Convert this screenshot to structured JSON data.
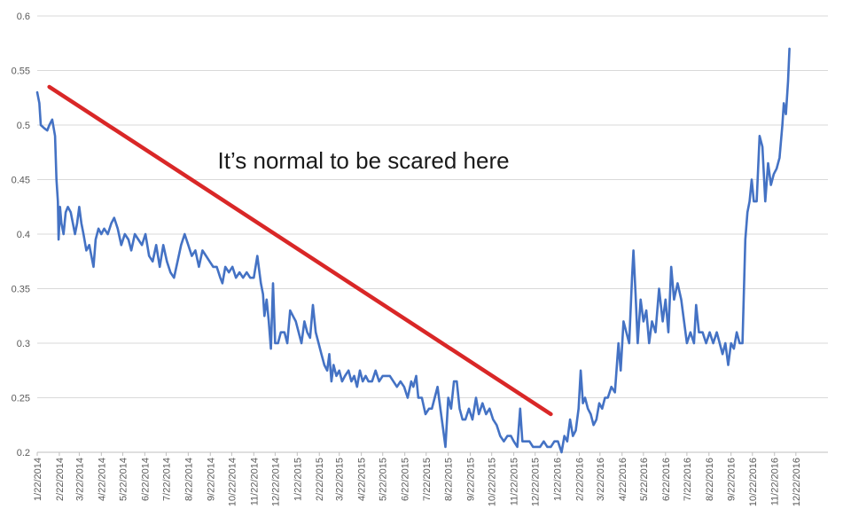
{
  "chart_data": {
    "type": "line",
    "title": "",
    "xlabel": "",
    "ylabel": "",
    "ylim": [
      0.2,
      0.6
    ],
    "yticks": [
      0.2,
      0.25,
      0.3,
      0.35,
      0.4,
      0.45,
      0.5,
      0.55,
      0.6
    ],
    "ytick_labels": [
      "0.2",
      "0.25",
      "0.3",
      "0.35",
      "0.4",
      "0.45",
      "0.5",
      "0.55",
      "0.6"
    ],
    "xlim": [
      "2014-01-22",
      "2017-02-05"
    ],
    "xticks": [
      "2014-01-22",
      "2014-02-22",
      "2014-03-22",
      "2014-04-22",
      "2014-05-22",
      "2014-06-22",
      "2014-07-22",
      "2014-08-22",
      "2014-09-22",
      "2014-10-22",
      "2014-11-22",
      "2014-12-22",
      "2015-01-22",
      "2015-02-22",
      "2015-03-22",
      "2015-04-22",
      "2015-05-22",
      "2015-06-22",
      "2015-07-22",
      "2015-08-22",
      "2015-09-22",
      "2015-10-22",
      "2015-11-22",
      "2015-12-22",
      "2016-01-22",
      "2016-02-22",
      "2016-03-22",
      "2016-04-22",
      "2016-05-22",
      "2016-06-22",
      "2016-07-22",
      "2016-08-22",
      "2016-09-22",
      "2016-10-22",
      "2016-11-22",
      "2016-12-22"
    ],
    "xtick_labels": [
      "1/22/2014",
      "2/22/2014",
      "3/22/2014",
      "4/22/2014",
      "5/22/2014",
      "6/22/2014",
      "7/22/2014",
      "8/22/2014",
      "9/22/2014",
      "10/22/2014",
      "11/22/2014",
      "12/22/2014",
      "1/22/2015",
      "2/22/2015",
      "3/22/2015",
      "4/22/2015",
      "5/22/2015",
      "6/22/2015",
      "7/22/2015",
      "8/22/2015",
      "9/22/2015",
      "10/22/2015",
      "11/22/2015",
      "12/22/2015",
      "1/22/2016",
      "2/22/2016",
      "3/22/2016",
      "4/22/2016",
      "5/22/2016",
      "6/22/2016",
      "7/22/2016",
      "8/22/2016",
      "9/22/2016",
      "10/22/2016",
      "11/22/2016",
      "12/22/2016"
    ],
    "grid": "horizontal",
    "legend": "none",
    "series": [
      {
        "color": "#4472c4",
        "points": [
          [
            "2014-01-22",
            0.53
          ],
          [
            "2014-01-25",
            0.52
          ],
          [
            "2014-01-27",
            0.5
          ],
          [
            "2014-02-01",
            0.497
          ],
          [
            "2014-02-05",
            0.495
          ],
          [
            "2014-02-08",
            0.5
          ],
          [
            "2014-02-12",
            0.505
          ],
          [
            "2014-02-16",
            0.49
          ],
          [
            "2014-02-18",
            0.45
          ],
          [
            "2014-02-20",
            0.43
          ],
          [
            "2014-02-21",
            0.395
          ],
          [
            "2014-02-23",
            0.425
          ],
          [
            "2014-02-25",
            0.41
          ],
          [
            "2014-02-28",
            0.4
          ],
          [
            "2014-03-03",
            0.42
          ],
          [
            "2014-03-06",
            0.425
          ],
          [
            "2014-03-10",
            0.42
          ],
          [
            "2014-03-13",
            0.41
          ],
          [
            "2014-03-16",
            0.4
          ],
          [
            "2014-03-19",
            0.41
          ],
          [
            "2014-03-22",
            0.425
          ],
          [
            "2014-03-25",
            0.41
          ],
          [
            "2014-03-28",
            0.4
          ],
          [
            "2014-04-01",
            0.385
          ],
          [
            "2014-04-05",
            0.39
          ],
          [
            "2014-04-08",
            0.38
          ],
          [
            "2014-04-11",
            0.37
          ],
          [
            "2014-04-14",
            0.395
          ],
          [
            "2014-04-18",
            0.405
          ],
          [
            "2014-04-22",
            0.4
          ],
          [
            "2014-04-26",
            0.405
          ],
          [
            "2014-05-01",
            0.4
          ],
          [
            "2014-05-06",
            0.41
          ],
          [
            "2014-05-10",
            0.415
          ],
          [
            "2014-05-15",
            0.405
          ],
          [
            "2014-05-20",
            0.39
          ],
          [
            "2014-05-25",
            0.4
          ],
          [
            "2014-05-30",
            0.395
          ],
          [
            "2014-06-03",
            0.385
          ],
          [
            "2014-06-08",
            0.4
          ],
          [
            "2014-06-13",
            0.395
          ],
          [
            "2014-06-18",
            0.39
          ],
          [
            "2014-06-23",
            0.4
          ],
          [
            "2014-06-28",
            0.38
          ],
          [
            "2014-07-03",
            0.375
          ],
          [
            "2014-07-08",
            0.39
          ],
          [
            "2014-07-13",
            0.37
          ],
          [
            "2014-07-18",
            0.39
          ],
          [
            "2014-07-23",
            0.375
          ],
          [
            "2014-07-28",
            0.365
          ],
          [
            "2014-08-02",
            0.36
          ],
          [
            "2014-08-07",
            0.375
          ],
          [
            "2014-08-12",
            0.39
          ],
          [
            "2014-08-17",
            0.4
          ],
          [
            "2014-08-22",
            0.39
          ],
          [
            "2014-08-27",
            0.38
          ],
          [
            "2014-09-01",
            0.385
          ],
          [
            "2014-09-06",
            0.37
          ],
          [
            "2014-09-11",
            0.385
          ],
          [
            "2014-09-16",
            0.38
          ],
          [
            "2014-09-21",
            0.375
          ],
          [
            "2014-09-26",
            0.37
          ],
          [
            "2014-10-01",
            0.37
          ],
          [
            "2014-10-06",
            0.36
          ],
          [
            "2014-10-09",
            0.355
          ],
          [
            "2014-10-13",
            0.37
          ],
          [
            "2014-10-18",
            0.365
          ],
          [
            "2014-10-23",
            0.37
          ],
          [
            "2014-10-28",
            0.36
          ],
          [
            "2014-11-02",
            0.365
          ],
          [
            "2014-11-07",
            0.36
          ],
          [
            "2014-11-12",
            0.365
          ],
          [
            "2014-11-17",
            0.36
          ],
          [
            "2014-11-22",
            0.36
          ],
          [
            "2014-11-27",
            0.38
          ],
          [
            "2014-12-02",
            0.355
          ],
          [
            "2014-12-05",
            0.345
          ],
          [
            "2014-12-07",
            0.325
          ],
          [
            "2014-12-10",
            0.34
          ],
          [
            "2014-12-13",
            0.32
          ],
          [
            "2014-12-16",
            0.295
          ],
          [
            "2014-12-19",
            0.355
          ],
          [
            "2014-12-22",
            0.3
          ],
          [
            "2014-12-26",
            0.3
          ],
          [
            "2014-12-30",
            0.31
          ],
          [
            "2015-01-04",
            0.31
          ],
          [
            "2015-01-08",
            0.3
          ],
          [
            "2015-01-12",
            0.33
          ],
          [
            "2015-01-16",
            0.325
          ],
          [
            "2015-01-20",
            0.32
          ],
          [
            "2015-01-24",
            0.31
          ],
          [
            "2015-01-28",
            0.3
          ],
          [
            "2015-02-01",
            0.32
          ],
          [
            "2015-02-05",
            0.31
          ],
          [
            "2015-02-09",
            0.305
          ],
          [
            "2015-02-13",
            0.335
          ],
          [
            "2015-02-17",
            0.31
          ],
          [
            "2015-02-21",
            0.3
          ],
          [
            "2015-02-25",
            0.29
          ],
          [
            "2015-03-01",
            0.28
          ],
          [
            "2015-03-05",
            0.275
          ],
          [
            "2015-03-08",
            0.29
          ],
          [
            "2015-03-11",
            0.265
          ],
          [
            "2015-03-14",
            0.28
          ],
          [
            "2015-03-18",
            0.27
          ],
          [
            "2015-03-22",
            0.275
          ],
          [
            "2015-03-26",
            0.265
          ],
          [
            "2015-03-30",
            0.27
          ],
          [
            "2015-04-04",
            0.275
          ],
          [
            "2015-04-08",
            0.265
          ],
          [
            "2015-04-12",
            0.27
          ],
          [
            "2015-04-16",
            0.26
          ],
          [
            "2015-04-20",
            0.275
          ],
          [
            "2015-04-24",
            0.265
          ],
          [
            "2015-04-28",
            0.27
          ],
          [
            "2015-05-02",
            0.265
          ],
          [
            "2015-05-07",
            0.265
          ],
          [
            "2015-05-12",
            0.275
          ],
          [
            "2015-05-17",
            0.265
          ],
          [
            "2015-05-22",
            0.27
          ],
          [
            "2015-05-27",
            0.27
          ],
          [
            "2015-06-01",
            0.27
          ],
          [
            "2015-06-06",
            0.265
          ],
          [
            "2015-06-11",
            0.26
          ],
          [
            "2015-06-16",
            0.265
          ],
          [
            "2015-06-21",
            0.26
          ],
          [
            "2015-06-26",
            0.25
          ],
          [
            "2015-07-01",
            0.265
          ],
          [
            "2015-07-04",
            0.26
          ],
          [
            "2015-07-08",
            0.27
          ],
          [
            "2015-07-11",
            0.25
          ],
          [
            "2015-07-16",
            0.25
          ],
          [
            "2015-07-21",
            0.235
          ],
          [
            "2015-07-26",
            0.24
          ],
          [
            "2015-07-30",
            0.24
          ],
          [
            "2015-08-03",
            0.25
          ],
          [
            "2015-08-07",
            0.26
          ],
          [
            "2015-08-11",
            0.24
          ],
          [
            "2015-08-15",
            0.22
          ],
          [
            "2015-08-18",
            0.205
          ],
          [
            "2015-08-22",
            0.25
          ],
          [
            "2015-08-26",
            0.24
          ],
          [
            "2015-08-30",
            0.265
          ],
          [
            "2015-09-03",
            0.265
          ],
          [
            "2015-09-07",
            0.24
          ],
          [
            "2015-09-11",
            0.23
          ],
          [
            "2015-09-15",
            0.23
          ],
          [
            "2015-09-20",
            0.24
          ],
          [
            "2015-09-25",
            0.23
          ],
          [
            "2015-09-30",
            0.25
          ],
          [
            "2015-10-04",
            0.235
          ],
          [
            "2015-10-09",
            0.245
          ],
          [
            "2015-10-14",
            0.235
          ],
          [
            "2015-10-19",
            0.24
          ],
          [
            "2015-10-24",
            0.23
          ],
          [
            "2015-10-29",
            0.225
          ],
          [
            "2015-11-03",
            0.215
          ],
          [
            "2015-11-08",
            0.21
          ],
          [
            "2015-11-13",
            0.215
          ],
          [
            "2015-11-18",
            0.215
          ],
          [
            "2015-11-22",
            0.21
          ],
          [
            "2015-11-27",
            0.205
          ],
          [
            "2015-12-01",
            0.24
          ],
          [
            "2015-12-04",
            0.21
          ],
          [
            "2015-12-09",
            0.21
          ],
          [
            "2015-12-14",
            0.21
          ],
          [
            "2015-12-19",
            0.205
          ],
          [
            "2015-12-24",
            0.205
          ],
          [
            "2015-12-29",
            0.205
          ],
          [
            "2016-01-03",
            0.21
          ],
          [
            "2016-01-08",
            0.205
          ],
          [
            "2016-01-13",
            0.205
          ],
          [
            "2016-01-18",
            0.21
          ],
          [
            "2016-01-23",
            0.21
          ],
          [
            "2016-01-28",
            0.2
          ],
          [
            "2016-02-01",
            0.215
          ],
          [
            "2016-02-05",
            0.21
          ],
          [
            "2016-02-09",
            0.23
          ],
          [
            "2016-02-13",
            0.215
          ],
          [
            "2016-02-17",
            0.22
          ],
          [
            "2016-02-21",
            0.24
          ],
          [
            "2016-02-24",
            0.275
          ],
          [
            "2016-02-27",
            0.245
          ],
          [
            "2016-03-01",
            0.25
          ],
          [
            "2016-03-05",
            0.24
          ],
          [
            "2016-03-09",
            0.235
          ],
          [
            "2016-03-13",
            0.225
          ],
          [
            "2016-03-17",
            0.23
          ],
          [
            "2016-03-21",
            0.245
          ],
          [
            "2016-03-25",
            0.24
          ],
          [
            "2016-03-29",
            0.25
          ],
          [
            "2016-04-02",
            0.25
          ],
          [
            "2016-04-07",
            0.26
          ],
          [
            "2016-04-12",
            0.255
          ],
          [
            "2016-04-17",
            0.3
          ],
          [
            "2016-04-20",
            0.275
          ],
          [
            "2016-04-24",
            0.32
          ],
          [
            "2016-04-28",
            0.31
          ],
          [
            "2016-05-02",
            0.3
          ],
          [
            "2016-05-06",
            0.36
          ],
          [
            "2016-05-08",
            0.385
          ],
          [
            "2016-05-11",
            0.345
          ],
          [
            "2016-05-14",
            0.3
          ],
          [
            "2016-05-18",
            0.34
          ],
          [
            "2016-05-22",
            0.32
          ],
          [
            "2016-05-26",
            0.33
          ],
          [
            "2016-05-30",
            0.3
          ],
          [
            "2016-06-03",
            0.32
          ],
          [
            "2016-06-08",
            0.31
          ],
          [
            "2016-06-13",
            0.35
          ],
          [
            "2016-06-18",
            0.32
          ],
          [
            "2016-06-22",
            0.34
          ],
          [
            "2016-06-26",
            0.31
          ],
          [
            "2016-06-30",
            0.37
          ],
          [
            "2016-07-04",
            0.34
          ],
          [
            "2016-07-09",
            0.355
          ],
          [
            "2016-07-14",
            0.34
          ],
          [
            "2016-07-18",
            0.32
          ],
          [
            "2016-07-22",
            0.3
          ],
          [
            "2016-07-27",
            0.31
          ],
          [
            "2016-08-01",
            0.3
          ],
          [
            "2016-08-04",
            0.335
          ],
          [
            "2016-08-08",
            0.31
          ],
          [
            "2016-08-13",
            0.31
          ],
          [
            "2016-08-18",
            0.3
          ],
          [
            "2016-08-23",
            0.31
          ],
          [
            "2016-08-28",
            0.3
          ],
          [
            "2016-09-02",
            0.31
          ],
          [
            "2016-09-06",
            0.3
          ],
          [
            "2016-09-10",
            0.29
          ],
          [
            "2016-09-14",
            0.3
          ],
          [
            "2016-09-18",
            0.28
          ],
          [
            "2016-09-22",
            0.3
          ],
          [
            "2016-09-26",
            0.295
          ],
          [
            "2016-09-30",
            0.31
          ],
          [
            "2016-10-04",
            0.3
          ],
          [
            "2016-10-08",
            0.3
          ],
          [
            "2016-10-12",
            0.395
          ],
          [
            "2016-10-15",
            0.42
          ],
          [
            "2016-10-18",
            0.43
          ],
          [
            "2016-10-21",
            0.45
          ],
          [
            "2016-10-24",
            0.43
          ],
          [
            "2016-10-28",
            0.43
          ],
          [
            "2016-11-01",
            0.49
          ],
          [
            "2016-11-05",
            0.48
          ],
          [
            "2016-11-09",
            0.43
          ],
          [
            "2016-11-13",
            0.465
          ],
          [
            "2016-11-17",
            0.445
          ],
          [
            "2016-11-21",
            0.455
          ],
          [
            "2016-11-25",
            0.46
          ],
          [
            "2016-11-29",
            0.47
          ],
          [
            "2016-12-03",
            0.5
          ],
          [
            "2016-12-05",
            0.52
          ],
          [
            "2016-12-08",
            0.51
          ],
          [
            "2016-12-11",
            0.54
          ],
          [
            "2016-12-13",
            0.57
          ]
        ]
      }
    ],
    "annotation_line": {
      "color": "#d92727",
      "start": [
        "2014-02-08",
        0.535
      ],
      "end": [
        "2016-01-13",
        0.235
      ]
    },
    "annotations": [
      {
        "text": "It’s normal to be scared here",
        "x": "2015-04-25",
        "y": 0.46
      }
    ]
  }
}
